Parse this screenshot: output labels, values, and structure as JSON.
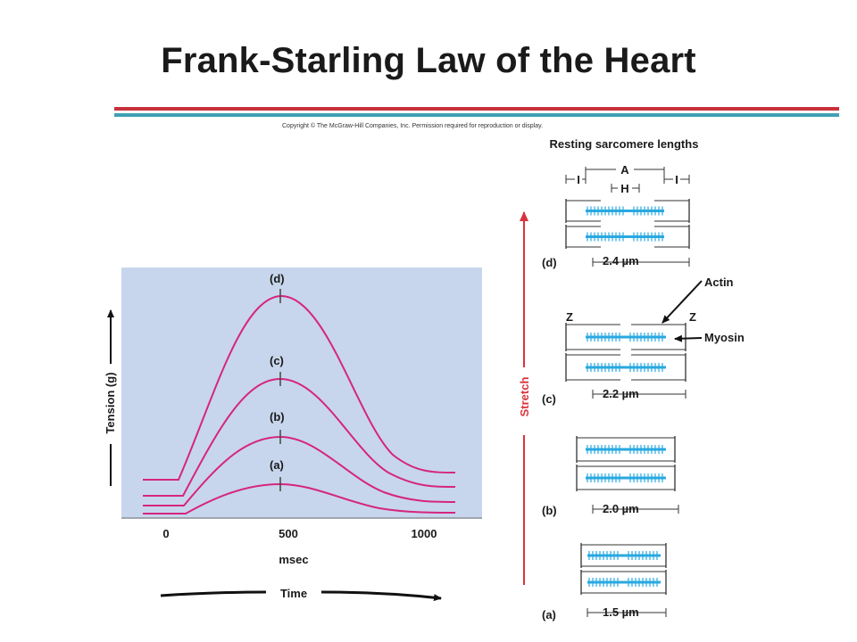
{
  "title": "Frank-Starling Law of the Heart",
  "copyright": "Copyright © The McGraw-Hill Companies, Inc. Permission required for reproduction or display.",
  "colors": {
    "title_rule_red": "#c8313c",
    "title_rule_teal": "#3fa0b4",
    "plot_bg": "#c7d6ec",
    "curve": "#d6257f",
    "arrow_red": "#d8343c",
    "filament_blue": "#29a9e1"
  },
  "graph": {
    "ylabel": "Tension (g)",
    "xlabel": "msec",
    "x_ticks": [
      "0",
      "500",
      "1000"
    ],
    "time_label": "Time",
    "curve_labels": [
      "(a)",
      "(b)",
      "(c)",
      "(d)"
    ]
  },
  "sarcomeres": {
    "heading": "Resting sarcomere lengths",
    "band_labels": {
      "a_band": "A",
      "h_zone": "H",
      "i_band_left": "I",
      "i_band_right": "I"
    },
    "z_left": "Z",
    "z_right": "Z",
    "actin": "Actin",
    "myosin": "Myosin",
    "stretch": "Stretch",
    "items": [
      {
        "tag": "(d)",
        "length": "2.4 µm"
      },
      {
        "tag": "(c)",
        "length": "2.2 µm"
      },
      {
        "tag": "(b)",
        "length": "2.0 µm"
      },
      {
        "tag": "(a)",
        "length": "1.5 µm"
      }
    ]
  }
}
